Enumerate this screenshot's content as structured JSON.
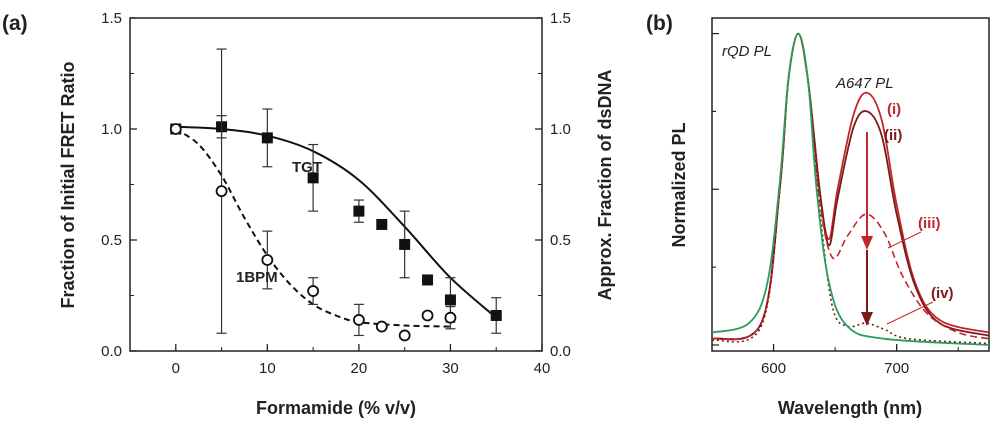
{
  "chart_data": [
    {
      "panel": "(a)",
      "type": "scatter",
      "xlabel": "Formamide (%  v/v)",
      "ylabel_left": "Fraction of Initial FRET Ratio",
      "ylabel_right": "Approx. Fraction of dsDNA",
      "xlim": [
        -5,
        40
      ],
      "ylim": [
        0,
        1.5
      ],
      "x_ticks": [
        "0",
        "10",
        "20",
        "30",
        "40"
      ],
      "y_ticks_left": [
        "0.0",
        "0.5",
        "1.0",
        "1.5"
      ],
      "y_ticks_right": [
        "0.0",
        "0.5",
        "1.0",
        "1.5"
      ],
      "series": [
        {
          "name": "TGT",
          "marker": "filled-square",
          "points": [
            {
              "x": 0,
              "y": 1.0,
              "err": 0.0
            },
            {
              "x": 5,
              "y": 1.01,
              "err": 0.05
            },
            {
              "x": 10,
              "y": 0.96,
              "err": 0.13
            },
            {
              "x": 15,
              "y": 0.78,
              "err": 0.15
            },
            {
              "x": 20,
              "y": 0.63,
              "err": 0.05
            },
            {
              "x": 22.5,
              "y": 0.57,
              "err": 0.0
            },
            {
              "x": 25,
              "y": 0.48,
              "err": 0.15
            },
            {
              "x": 27.5,
              "y": 0.32,
              "err": 0.0
            },
            {
              "x": 30,
              "y": 0.23,
              "err": 0.1
            },
            {
              "x": 35,
              "y": 0.16,
              "err": 0.08
            }
          ],
          "fit": "solid",
          "fit_points": [
            [
              0,
              1.01
            ],
            [
              5,
              1.0
            ],
            [
              10,
              0.97
            ],
            [
              15,
              0.9
            ],
            [
              20,
              0.77
            ],
            [
              25,
              0.56
            ],
            [
              30,
              0.33
            ],
            [
              35,
              0.15
            ]
          ]
        },
        {
          "name": "1BPM",
          "marker": "open-circle",
          "points": [
            {
              "x": 0,
              "y": 1.0,
              "err": 0.0
            },
            {
              "x": 5,
              "y": 0.72,
              "err": 0.64
            },
            {
              "x": 10,
              "y": 0.41,
              "err": 0.13
            },
            {
              "x": 15,
              "y": 0.27,
              "err": 0.06
            },
            {
              "x": 20,
              "y": 0.14,
              "err": 0.07
            },
            {
              "x": 22.5,
              "y": 0.11,
              "err": 0.0
            },
            {
              "x": 25,
              "y": 0.07,
              "err": 0.0
            },
            {
              "x": 27.5,
              "y": 0.16,
              "err": 0.0
            },
            {
              "x": 30,
              "y": 0.15,
              "err": 0.05
            }
          ],
          "fit": "dashed",
          "fit_points": [
            [
              0,
              1.0
            ],
            [
              2.5,
              0.93
            ],
            [
              5,
              0.79
            ],
            [
              7.5,
              0.6
            ],
            [
              10,
              0.43
            ],
            [
              12.5,
              0.3
            ],
            [
              15,
              0.21
            ],
            [
              17.5,
              0.16
            ],
            [
              20,
              0.13
            ],
            [
              25,
              0.115
            ],
            [
              30,
              0.11
            ]
          ]
        }
      ],
      "annotations": [
        "TGT",
        "1BPM"
      ]
    },
    {
      "panel": "(b)",
      "type": "line",
      "xlabel": "Wavelength (nm)",
      "ylabel": "Normalized PL",
      "xlim": [
        550,
        775
      ],
      "ylim": [
        0,
        1.05
      ],
      "x_ticks": [
        "600",
        "700"
      ],
      "annotations": [
        "rQD PL",
        "A647 PL",
        "(i)",
        "(ii)",
        "(iii)",
        "(iv)"
      ],
      "series": [
        {
          "name": "rQD PL",
          "color": "#2a9d5c",
          "style": "solid",
          "points": [
            [
              550,
              0.04
            ],
            [
              580,
              0.07
            ],
            [
              595,
              0.2
            ],
            [
              605,
              0.52
            ],
            [
              612,
              0.85
            ],
            [
              620,
              1.0
            ],
            [
              628,
              0.85
            ],
            [
              635,
              0.5
            ],
            [
              645,
              0.2
            ],
            [
              660,
              0.06
            ],
            [
              690,
              0.02
            ],
            [
              775,
              0.0
            ]
          ]
        },
        {
          "name": "(i)",
          "color": "#c0272d",
          "style": "solid",
          "points": [
            [
              550,
              0.02
            ],
            [
              590,
              0.07
            ],
            [
              605,
              0.5
            ],
            [
              612,
              0.85
            ],
            [
              620,
              1.0
            ],
            [
              628,
              0.85
            ],
            [
              638,
              0.48
            ],
            [
              645,
              0.34
            ],
            [
              652,
              0.5
            ],
            [
              665,
              0.74
            ],
            [
              676,
              0.81
            ],
            [
              688,
              0.72
            ],
            [
              700,
              0.45
            ],
            [
              715,
              0.2
            ],
            [
              735,
              0.08
            ],
            [
              775,
              0.04
            ]
          ]
        },
        {
          "name": "(ii)",
          "color": "#7a1a1a",
          "style": "solid",
          "points": [
            [
              550,
              0.02
            ],
            [
              590,
              0.07
            ],
            [
              605,
              0.5
            ],
            [
              612,
              0.85
            ],
            [
              620,
              1.0
            ],
            [
              628,
              0.85
            ],
            [
              638,
              0.48
            ],
            [
              645,
              0.32
            ],
            [
              652,
              0.47
            ],
            [
              665,
              0.7
            ],
            [
              676,
              0.75
            ],
            [
              688,
              0.67
            ],
            [
              700,
              0.42
            ],
            [
              715,
              0.19
            ],
            [
              735,
              0.07
            ],
            [
              775,
              0.03
            ]
          ]
        },
        {
          "name": "(iii)",
          "color": "#c0272d",
          "style": "dashed",
          "points": [
            [
              550,
              0.02
            ],
            [
              590,
              0.07
            ],
            [
              605,
              0.5
            ],
            [
              612,
              0.85
            ],
            [
              620,
              1.0
            ],
            [
              628,
              0.85
            ],
            [
              638,
              0.45
            ],
            [
              648,
              0.28
            ],
            [
              660,
              0.35
            ],
            [
              675,
              0.42
            ],
            [
              690,
              0.36
            ],
            [
              705,
              0.22
            ],
            [
              725,
              0.1
            ],
            [
              750,
              0.04
            ],
            [
              775,
              0.02
            ]
          ]
        },
        {
          "name": "(iv)",
          "color": "#7a1a1a",
          "style": "dotted",
          "points": [
            [
              550,
              0.015
            ],
            [
              590,
              0.06
            ],
            [
              605,
              0.5
            ],
            [
              612,
              0.85
            ],
            [
              620,
              1.0
            ],
            [
              628,
              0.85
            ],
            [
              638,
              0.42
            ],
            [
              648,
              0.12
            ],
            [
              660,
              0.06
            ],
            [
              675,
              0.07
            ],
            [
              690,
              0.05
            ],
            [
              710,
              0.02
            ],
            [
              775,
              0.005
            ]
          ]
        }
      ]
    }
  ]
}
